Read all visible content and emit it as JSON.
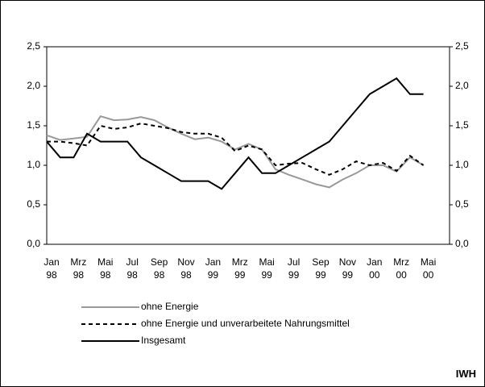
{
  "chart_data": {
    "type": "line",
    "categories": [
      "Jan 98",
      null,
      "Mrz 98",
      null,
      "Mai 98",
      null,
      "Jul 98",
      null,
      "Sep 98",
      null,
      "Nov 98",
      null,
      "Jan 99",
      null,
      "Mrz 99",
      null,
      "Mai 99",
      null,
      "Jul 99",
      null,
      "Sep 99",
      null,
      "Nov 99",
      null,
      "Jan 00",
      null,
      "Mrz 00",
      null,
      "Mai 00"
    ],
    "series": [
      {
        "name": "ohne Energie",
        "color": "#999999",
        "style": "solid",
        "values": [
          1.38,
          1.32,
          1.34,
          1.36,
          1.62,
          1.57,
          1.58,
          1.61,
          1.57,
          1.48,
          1.4,
          1.33,
          1.35,
          1.3,
          1.2,
          1.27,
          1.2,
          0.95,
          0.88,
          0.82,
          0.76,
          0.72,
          0.82,
          0.9,
          1.0,
          1.0,
          0.92,
          1.1,
          1.0
        ]
      },
      {
        "name": "ohne Energie und unverarbeitete Nahrungsmittel",
        "color": "#000000",
        "style": "dashed",
        "values": [
          1.3,
          1.3,
          1.28,
          1.25,
          1.5,
          1.46,
          1.48,
          1.53,
          1.5,
          1.47,
          1.42,
          1.4,
          1.4,
          1.35,
          1.18,
          1.25,
          1.2,
          1.0,
          1.02,
          1.03,
          0.95,
          0.88,
          0.95,
          1.05,
          1.0,
          1.03,
          0.93,
          1.12,
          1.0
        ]
      },
      {
        "name": "Insgesamt",
        "color": "#000000",
        "style": "solid",
        "values": [
          1.3,
          1.1,
          1.1,
          1.4,
          1.3,
          1.3,
          1.3,
          1.1,
          1.0,
          0.9,
          0.8,
          0.8,
          0.8,
          0.7,
          0.9,
          1.1,
          0.9,
          0.9,
          1.0,
          1.1,
          1.2,
          1.3,
          1.5,
          1.7,
          1.9,
          2.0,
          2.1,
          1.9,
          1.9
        ]
      }
    ],
    "ylim": [
      0,
      2.5
    ],
    "yticks": [
      {
        "value": 0,
        "label": "0,0"
      },
      {
        "value": 0.5,
        "label": "0,5"
      },
      {
        "value": 1,
        "label": "1,0"
      },
      {
        "value": 1.5,
        "label": "1,5"
      },
      {
        "value": 2,
        "label": "2,0"
      },
      {
        "value": 2.5,
        "label": "2,5"
      }
    ],
    "y2lim": [
      0,
      2.5
    ],
    "y2ticks": [
      {
        "value": 0,
        "label": "0,0"
      },
      {
        "value": 0.5,
        "label": "0,5"
      },
      {
        "value": 1,
        "label": "1,0"
      },
      {
        "value": 1.5,
        "label": "1,5"
      },
      {
        "value": 2,
        "label": "2,0"
      },
      {
        "value": 2.5,
        "label": "2,5"
      }
    ],
    "grid": false,
    "annotation": "IWH"
  }
}
